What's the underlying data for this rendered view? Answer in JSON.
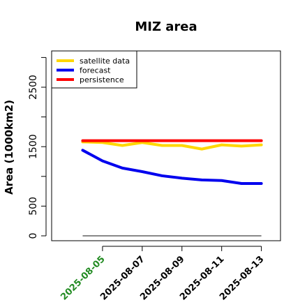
{
  "chart_data": {
    "type": "line",
    "title": "MIZ area",
    "xlabel": "",
    "ylabel": "Area (1000km2)",
    "x": [
      "2025-08-04",
      "2025-08-05",
      "2025-08-06",
      "2025-08-07",
      "2025-08-08",
      "2025-08-09",
      "2025-08-10",
      "2025-08-11",
      "2025-08-12",
      "2025-08-13"
    ],
    "xticks": [
      "2025-08-05",
      "2025-08-07",
      "2025-08-09",
      "2025-08-11",
      "2025-08-13"
    ],
    "xtick_colors": [
      "#228B22",
      "#000000",
      "#000000",
      "#000000",
      "#000000"
    ],
    "xlim": [
      "2025-08-03",
      "2025-08-13"
    ],
    "yticks": [
      0,
      500,
      1500,
      2500
    ],
    "ylim": [
      0,
      3100
    ],
    "grid": false,
    "legend_position": "top-left",
    "series": [
      {
        "name": "satellite data",
        "color": "#FFD700",
        "values": [
          1580,
          1570,
          1520,
          1570,
          1520,
          1520,
          1460,
          1530,
          1510,
          1530
        ]
      },
      {
        "name": "forecast",
        "color": "#0000EE",
        "values": [
          1440,
          1260,
          1140,
          1080,
          1010,
          970,
          940,
          930,
          880,
          880
        ]
      },
      {
        "name": "persistence",
        "color": "#FF0000",
        "values": [
          1600,
          1600,
          1600,
          1600,
          1600,
          1600,
          1600,
          1600,
          1600,
          1600
        ]
      }
    ],
    "reference_line": {
      "value": 0,
      "color": "#888888"
    }
  }
}
